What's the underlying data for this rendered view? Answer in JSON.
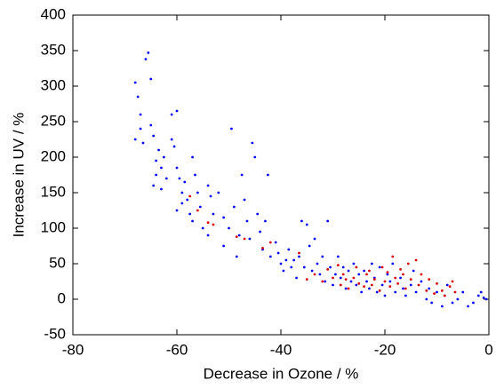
{
  "chart_data": {
    "type": "scatter",
    "x_label": "Decrease in Ozone / %",
    "y_label": "Increase in UV / %",
    "xlim": [
      -80,
      0
    ],
    "xticks": [
      -80,
      -60,
      -40,
      -20,
      0
    ],
    "ylim": [
      -50,
      400
    ],
    "yticks": [
      -50,
      0,
      50,
      100,
      150,
      200,
      250,
      300,
      350,
      400
    ],
    "series": [
      {
        "color": "#0000ff",
        "x": [
          -68,
          -68,
          -67.5,
          -67,
          -67,
          -66.5,
          -66,
          -65.5,
          -65,
          -65,
          -64.5,
          -64.5,
          -64,
          -64,
          -63.5,
          -63,
          -63,
          -62.5,
          -62,
          -61,
          -61,
          -60.5,
          -60,
          -60,
          -60,
          -59.5,
          -59,
          -59,
          -58.5,
          -58,
          -57.5,
          -57,
          -57,
          -56.5,
          -56,
          -55.5,
          -55,
          -54,
          -54,
          -53.5,
          -53,
          -52,
          -51,
          -51,
          -50,
          -49.5,
          -49,
          -48.5,
          -48,
          -47.5,
          -47,
          -46.5,
          -46,
          -45.5,
          -45,
          -44.5,
          -44,
          -43.5,
          -43,
          -42.5,
          -42,
          -41,
          -40.5,
          -40,
          -39.5,
          -39,
          -38.5,
          -38,
          -37.5,
          -37,
          -36.5,
          -36,
          -35.5,
          -35,
          -34.5,
          -34,
          -33.5,
          -33,
          -32.5,
          -32,
          -31.5,
          -31,
          -30.5,
          -30,
          -29.5,
          -29,
          -28.5,
          -28,
          -27.5,
          -27,
          -26.5,
          -26,
          -25.5,
          -25,
          -24.5,
          -24,
          -23.5,
          -23,
          -22.5,
          -22,
          -21.5,
          -21,
          -20.5,
          -20,
          -19.5,
          -19,
          -18.5,
          -18,
          -17,
          -16.5,
          -16,
          -15,
          -14.5,
          -14,
          -13,
          -12,
          -11.5,
          -11,
          -10,
          -9,
          -8.5,
          -8,
          -7,
          -6,
          -5,
          -4,
          -3,
          -2,
          -1.5,
          -1,
          -0.5
        ],
        "values": [
          305,
          225,
          285,
          260,
          240,
          220,
          338,
          347,
          310,
          245,
          230,
          160,
          195,
          175,
          210,
          185,
          155,
          200,
          170,
          260,
          225,
          215,
          265,
          185,
          125,
          170,
          150,
          135,
          165,
          140,
          120,
          200,
          110,
          175,
          150,
          130,
          100,
          90,
          160,
          145,
          120,
          150,
          115,
          75,
          100,
          240,
          130,
          60,
          90,
          175,
          140,
          110,
          85,
          220,
          200,
          120,
          95,
          70,
          110,
          175,
          60,
          80,
          65,
          50,
          40,
          55,
          70,
          45,
          55,
          30,
          60,
          110,
          45,
          105,
          75,
          40,
          85,
          50,
          35,
          60,
          25,
          110,
          45,
          20,
          35,
          60,
          30,
          45,
          15,
          40,
          25,
          50,
          20,
          35,
          10,
          40,
          25,
          15,
          50,
          30,
          10,
          45,
          20,
          5,
          35,
          25,
          50,
          10,
          30,
          15,
          5,
          20,
          40,
          10,
          25,
          0,
          15,
          -5,
          10,
          -10,
          5,
          20,
          -5,
          0,
          10,
          -10,
          -5,
          5,
          10,
          2,
          0
        ]
      },
      {
        "color": "#dd0000",
        "x": [
          -57.5,
          -56,
          -54,
          -53,
          -48.5,
          -47,
          -43.5,
          -42,
          -36.5,
          -35,
          -33.5,
          -32,
          -31,
          -30,
          -29,
          -28.5,
          -28,
          -27.5,
          -27,
          -26,
          -25.5,
          -25,
          -24,
          -23.5,
          -23,
          -22.5,
          -22,
          -21,
          -20.5,
          -20,
          -19.5,
          -19,
          -18.5,
          -18,
          -17.5,
          -17,
          -16.5,
          -16,
          -15.5,
          -15,
          -14,
          -13.5,
          -13,
          -12,
          -11.5,
          -10.5,
          -10,
          -9,
          -8.5,
          -7.5,
          -7,
          -6.5
        ],
        "values": [
          145,
          125,
          108,
          105,
          88,
          85,
          72,
          80,
          65,
          28,
          35,
          25,
          42,
          30,
          48,
          20,
          35,
          28,
          15,
          30,
          45,
          22,
          18,
          35,
          40,
          20,
          28,
          12,
          45,
          25,
          38,
          18,
          60,
          30,
          22,
          42,
          35,
          15,
          50,
          28,
          55,
          20,
          35,
          12,
          28,
          8,
          22,
          12,
          5,
          18,
          25,
          10
        ]
      }
    ]
  }
}
